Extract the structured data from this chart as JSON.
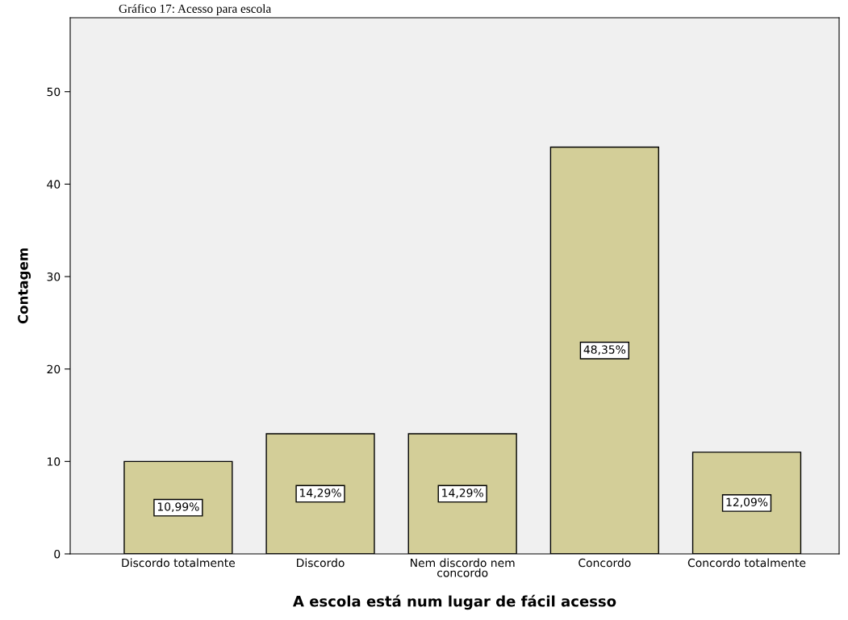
{
  "chart_data": {
    "type": "bar",
    "title": "Gráfico 17: Acesso para escola",
    "xlabel": "A escola está num lugar de fácil acesso",
    "ylabel": "Contagem",
    "categories": [
      "Discordo totalmente",
      "Discordo",
      "Nem discordo nem\nconcordo",
      "Concordo",
      "Concordo totalmente"
    ],
    "values": [
      10,
      13,
      13,
      44,
      11
    ],
    "annotations": [
      "10,99%",
      "14,29%",
      "14,29%",
      "48,35%",
      "12,09%"
    ],
    "color": "#d3ce98",
    "ylim": [
      0,
      58
    ],
    "yticks": [
      0,
      10,
      20,
      30,
      40,
      50
    ],
    "grid": false
  }
}
